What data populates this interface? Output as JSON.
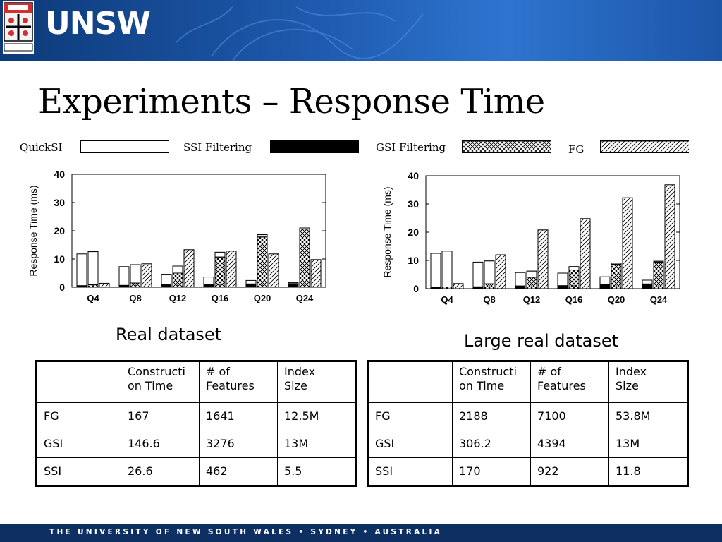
{
  "brand": {
    "name": "UNSW"
  },
  "slide": {
    "title": "Experiments – Response Time"
  },
  "legend": {
    "items": [
      {
        "label": "QuickSI",
        "pattern": "white"
      },
      {
        "label": "SSI Filtering",
        "pattern": "black"
      },
      {
        "label": "GSI Filtering",
        "pattern": "crosshatch"
      },
      {
        "label": "FG",
        "pattern": "diagonal"
      }
    ]
  },
  "chart_data": [
    {
      "type": "bar",
      "caption": "Real dataset",
      "ylabel": "Response Time (ms)",
      "xlabel": "",
      "ylim": [
        0,
        40
      ],
      "yticks": [
        0,
        10,
        20,
        30,
        40
      ],
      "categories": [
        "Q4",
        "Q8",
        "Q12",
        "Q16",
        "Q20",
        "Q24"
      ],
      "series": [
        {
          "name": "QuickSI",
          "values": [
            11.8,
            7.3,
            4.6,
            3.6,
            2.4,
            1.6
          ]
        },
        {
          "name": "SSI Filtering",
          "values": [
            0.2,
            0.3,
            0.5,
            0.6,
            0.8,
            0.9
          ]
        },
        {
          "name": "GSI Filtering",
          "values": [
            12.6,
            8.0,
            7.5,
            12.4,
            18.6,
            21.0
          ]
        },
        {
          "name": "FG",
          "values": [
            1.4,
            8.3,
            13.3,
            12.8,
            11.8,
            9.8
          ]
        }
      ],
      "stacked_on_gsi": [
        0.9,
        1.5,
        5.0,
        10.7,
        17.8,
        20.6
      ],
      "grid": false
    },
    {
      "type": "bar",
      "caption": "Large real dataset",
      "ylabel": "Response Time (ms)",
      "xlabel": "",
      "ylim": [
        0,
        40
      ],
      "yticks": [
        0,
        10,
        20,
        30,
        40
      ],
      "categories": [
        "Q4",
        "Q8",
        "Q12",
        "Q16",
        "Q20",
        "Q24"
      ],
      "series": [
        {
          "name": "QuickSI",
          "values": [
            12.5,
            9.4,
            5.7,
            5.5,
            4.2,
            3.0
          ]
        },
        {
          "name": "SSI Filtering",
          "values": [
            0.2,
            0.3,
            0.6,
            0.7,
            1.0,
            1.3
          ]
        },
        {
          "name": "GSI Filtering",
          "values": [
            13.3,
            9.8,
            6.2,
            7.8,
            9.0,
            9.7
          ]
        },
        {
          "name": "FG",
          "values": [
            1.8,
            12.0,
            20.8,
            24.8,
            32.2,
            36.8
          ]
        }
      ],
      "stacked_on_gsi": [
        0.6,
        1.7,
        4.0,
        6.6,
        8.6,
        9.4
      ],
      "grid": false
    }
  ],
  "tables": [
    {
      "headers": [
        "",
        "Constructi on Time",
        "# of Features",
        "Index Size"
      ],
      "header_lines": [
        [
          ""
        ],
        [
          "Constructi",
          "on Time"
        ],
        [
          "# of",
          "Features"
        ],
        [
          "Index",
          "Size"
        ]
      ],
      "rows": [
        [
          "FG",
          "167",
          "1641",
          "12.5M"
        ],
        [
          "GSI",
          "146.6",
          "3276",
          "13M"
        ],
        [
          "SSI",
          "26.6",
          "462",
          "5.5"
        ]
      ]
    },
    {
      "headers": [
        "",
        "Constructi on Time",
        "# of Features",
        "Index Size"
      ],
      "header_lines": [
        [
          ""
        ],
        [
          "Constructi",
          "on Time"
        ],
        [
          "# of",
          "Features"
        ],
        [
          "Index",
          "Size"
        ]
      ],
      "rows": [
        [
          "FG",
          "2188",
          "7100",
          "53.8M"
        ],
        [
          "GSI",
          "306.2",
          "4394",
          "13M"
        ],
        [
          "SSI",
          "170",
          "922",
          "11.8"
        ]
      ]
    }
  ],
  "footer": {
    "text": "THE UNIVERSITY OF NEW SOUTH WALES • SYDNEY • AUSTRALIA"
  },
  "colors": {
    "banner": "#1f5bb0",
    "footer": "#0e2f62"
  }
}
